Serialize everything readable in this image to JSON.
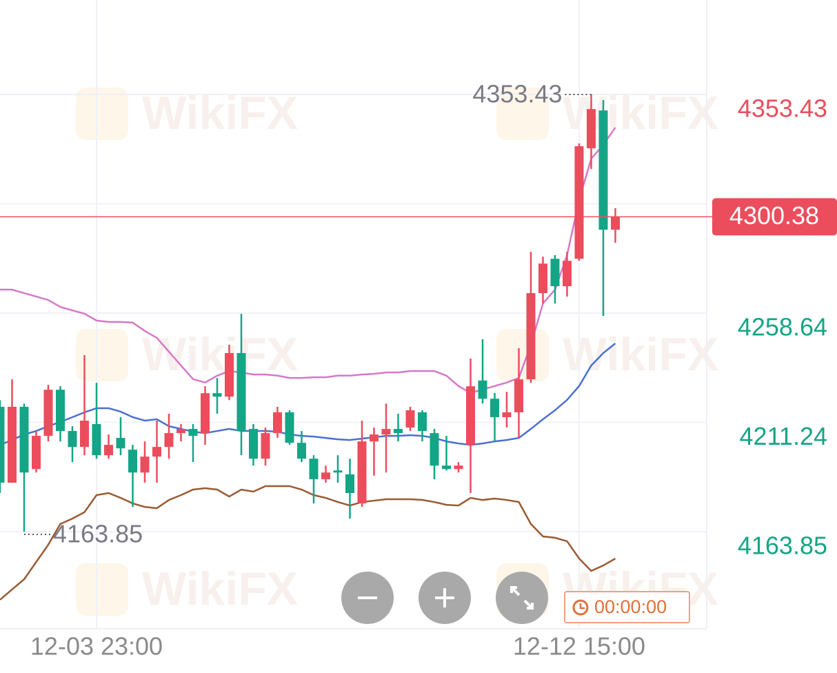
{
  "chart_data": {
    "type": "candlestick",
    "categories": [
      null,
      null,
      null,
      null,
      null,
      null,
      null,
      null,
      "12-03 23:00",
      null,
      null,
      null,
      null,
      null,
      null,
      null,
      null,
      null,
      null,
      null,
      null,
      null,
      null,
      null,
      null,
      null,
      null,
      null,
      null,
      null,
      null,
      null,
      null,
      null,
      null,
      null,
      null,
      null,
      null,
      null,
      null,
      null,
      null,
      null,
      null,
      null,
      null,
      null,
      "12-12 15:00",
      null,
      null,
      null
    ],
    "open": [
      4218.0,
      4185.1,
      4218.0,
      4191.0,
      4205.4,
      4225.4,
      4207.5,
      4200.6,
      4210.5,
      4197.0,
      4204.5,
      4199.4,
      4189.5,
      4196.4,
      4200.6,
      4206.6,
      4208.4,
      4206.6,
      4223.9,
      4222.4,
      4241.3,
      4208.4,
      4195.5,
      4206.6,
      4215.6,
      4202.4,
      4195.5,
      4186.6,
      4190.4,
      4188.7,
      4176.1,
      4203.0,
      4206.0,
      4208.4,
      4209.0,
      4215.6,
      4206.6,
      4192.5,
      4191.0,
      4201.5,
      4229.4,
      4221.5,
      4213.5,
      4215.6,
      4229.9,
      4267.3,
      4282.2,
      4270.3,
      4282.2,
      4330.1,
      4346.5,
      4294.8
    ],
    "high": [
      4220.9,
      4229.9,
      4219.4,
      4207.5,
      4227.5,
      4226.9,
      4209.6,
      4240.4,
      4228.4,
      4206.0,
      4213.5,
      4201.5,
      4203.0,
      4212.0,
      4215.0,
      4210.5,
      4210.5,
      4226.9,
      4230.5,
      4244.9,
      4258.3,
      4210.5,
      4209.0,
      4218.0,
      4216.5,
      4207.5,
      4197.0,
      4192.5,
      4197.0,
      4195.5,
      4212.0,
      4209.0,
      4219.4,
      4215.0,
      4218.0,
      4216.5,
      4208.4,
      4205.4,
      4194.0,
      4238.9,
      4247.3,
      4224.0,
      4224.5,
      4243.4,
      4285.2,
      4283.1,
      4283.8,
      4285.2,
      4332.2,
      4353.43,
      4351.0,
      4304.1
    ],
    "low": [
      4180.6,
      4185.1,
      4163.85,
      4189.5,
      4203.0,
      4203.0,
      4194.0,
      4197.0,
      4195.5,
      4195.5,
      4197.0,
      4174.6,
      4185.1,
      4185.1,
      4195.5,
      4203.0,
      4194.0,
      4201.5,
      4215.0,
      4220.9,
      4197.0,
      4192.5,
      4192.5,
      4204.5,
      4201.5,
      4194.0,
      4176.1,
      4185.1,
      4185.1,
      4169.5,
      4174.6,
      4188.1,
      4189.5,
      4203.0,
      4207.5,
      4203.0,
      4186.6,
      4190.4,
      4189.5,
      4180.6,
      4219.4,
      4203.0,
      4209.0,
      4204.5,
      4228.4,
      4262.8,
      4262.8,
      4265.8,
      4281.3,
      4321.1,
      4257.4,
      4289.1
    ],
    "close": [
      4185.1,
      4218.0,
      4189.5,
      4205.4,
      4225.4,
      4207.5,
      4200.6,
      4212.0,
      4197.0,
      4201.5,
      4200.0,
      4189.5,
      4196.4,
      4200.6,
      4206.6,
      4208.4,
      4205.4,
      4223.9,
      4222.4,
      4241.3,
      4207.5,
      4195.5,
      4206.6,
      4215.6,
      4202.4,
      4195.5,
      4186.6,
      4189.5,
      4189.5,
      4180.6,
      4203.0,
      4206.0,
      4208.4,
      4206.6,
      4216.5,
      4207.5,
      4192.5,
      4191.0,
      4192.5,
      4226.9,
      4221.5,
      4213.5,
      4215.6,
      4229.9,
      4267.3,
      4280.1,
      4270.3,
      4281.3,
      4331.0,
      4347.1,
      4294.8,
      4300.38
    ],
    "up_color": "#eb4d5c",
    "down_color": "#13a586",
    "series": [
      {
        "color": "#d678c8",
        "values": [
          4268.8,
          4268.8,
          4267.3,
          4265.8,
          4264.3,
          4261.3,
          4259.8,
          4258.4,
          4255.4,
          4254.8,
          4254.8,
          4254.5,
          4250.9,
          4247.9,
          4241.9,
          4235.9,
          4230.0,
          4228.5,
          4231.5,
          4233.5,
          4232.9,
          4232.0,
          4232.0,
          4231.5,
          4230.5,
          4230.5,
          4230.8,
          4230.8,
          4231.5,
          4231.5,
          4232.0,
          4232.3,
          4232.9,
          4232.9,
          4233.5,
          4233.5,
          4233.5,
          4231.5,
          4227.0,
          4224.0,
          4225.5,
          4227.0,
          4228.5,
          4230.5,
          4244.9,
          4262.8,
          4268.8,
          4283.8,
          4307.7,
          4325.6,
          4331.6,
          4339.1
        ]
      },
      {
        "color": "#4a6fd0",
        "values": [
          4201.5,
          4203.6,
          4206.0,
          4207.5,
          4209.6,
          4211.4,
          4213.5,
          4215.6,
          4217.4,
          4217.4,
          4215.9,
          4213.5,
          4212.0,
          4212.6,
          4209.6,
          4208.4,
          4207.2,
          4206.6,
          4207.5,
          4208.4,
          4207.5,
          4207.5,
          4207.5,
          4207.2,
          4206.0,
          4205.4,
          4205.1,
          4204.5,
          4203.9,
          4203.6,
          4204.2,
          4204.8,
          4205.4,
          4205.4,
          4205.7,
          4205.4,
          4204.5,
          4203.0,
          4202.1,
          4201.5,
          4202.1,
          4203.0,
          4203.6,
          4204.5,
          4208.4,
          4212.6,
          4216.5,
          4221.0,
          4227.0,
          4235.9,
          4241.3,
          4245.5
        ]
      },
      {
        "color": "#9a5a32",
        "values": [
          4134.3,
          4138.8,
          4143.2,
          4150.7,
          4158.2,
          4167.2,
          4169.5,
          4172.3,
          4179.7,
          4180.6,
          4178.5,
          4176.1,
          4174.6,
          4174.0,
          4177.6,
          4179.7,
          4182.1,
          4182.7,
          4182.1,
          4179.1,
          4182.1,
          4181.2,
          4183.6,
          4183.6,
          4183.6,
          4182.1,
          4179.7,
          4178.5,
          4176.7,
          4175.2,
          4176.7,
          4177.3,
          4177.9,
          4177.9,
          4177.9,
          4177.6,
          4176.7,
          4175.5,
          4175.2,
          4178.5,
          4177.6,
          4178.2,
          4177.6,
          4176.7,
          4167.2,
          4161.8,
          4161.2,
          4159.7,
          4152.2,
          4146.8,
          4149.2,
          4152.2
        ]
      }
    ],
    "ylim": [
      4121.7,
      4394.4
    ],
    "yticks": [
      4353.43,
      4258.64,
      4211.24,
      4163.85
    ],
    "ygrid": [
      4353.43,
      4306.04,
      4258.64,
      4211.24,
      4163.85
    ],
    "current_price": 4300.38,
    "high_marker": 4353.43,
    "low_marker": 4163.85,
    "timer": "00:00:00",
    "watermark": "WikiFX"
  }
}
